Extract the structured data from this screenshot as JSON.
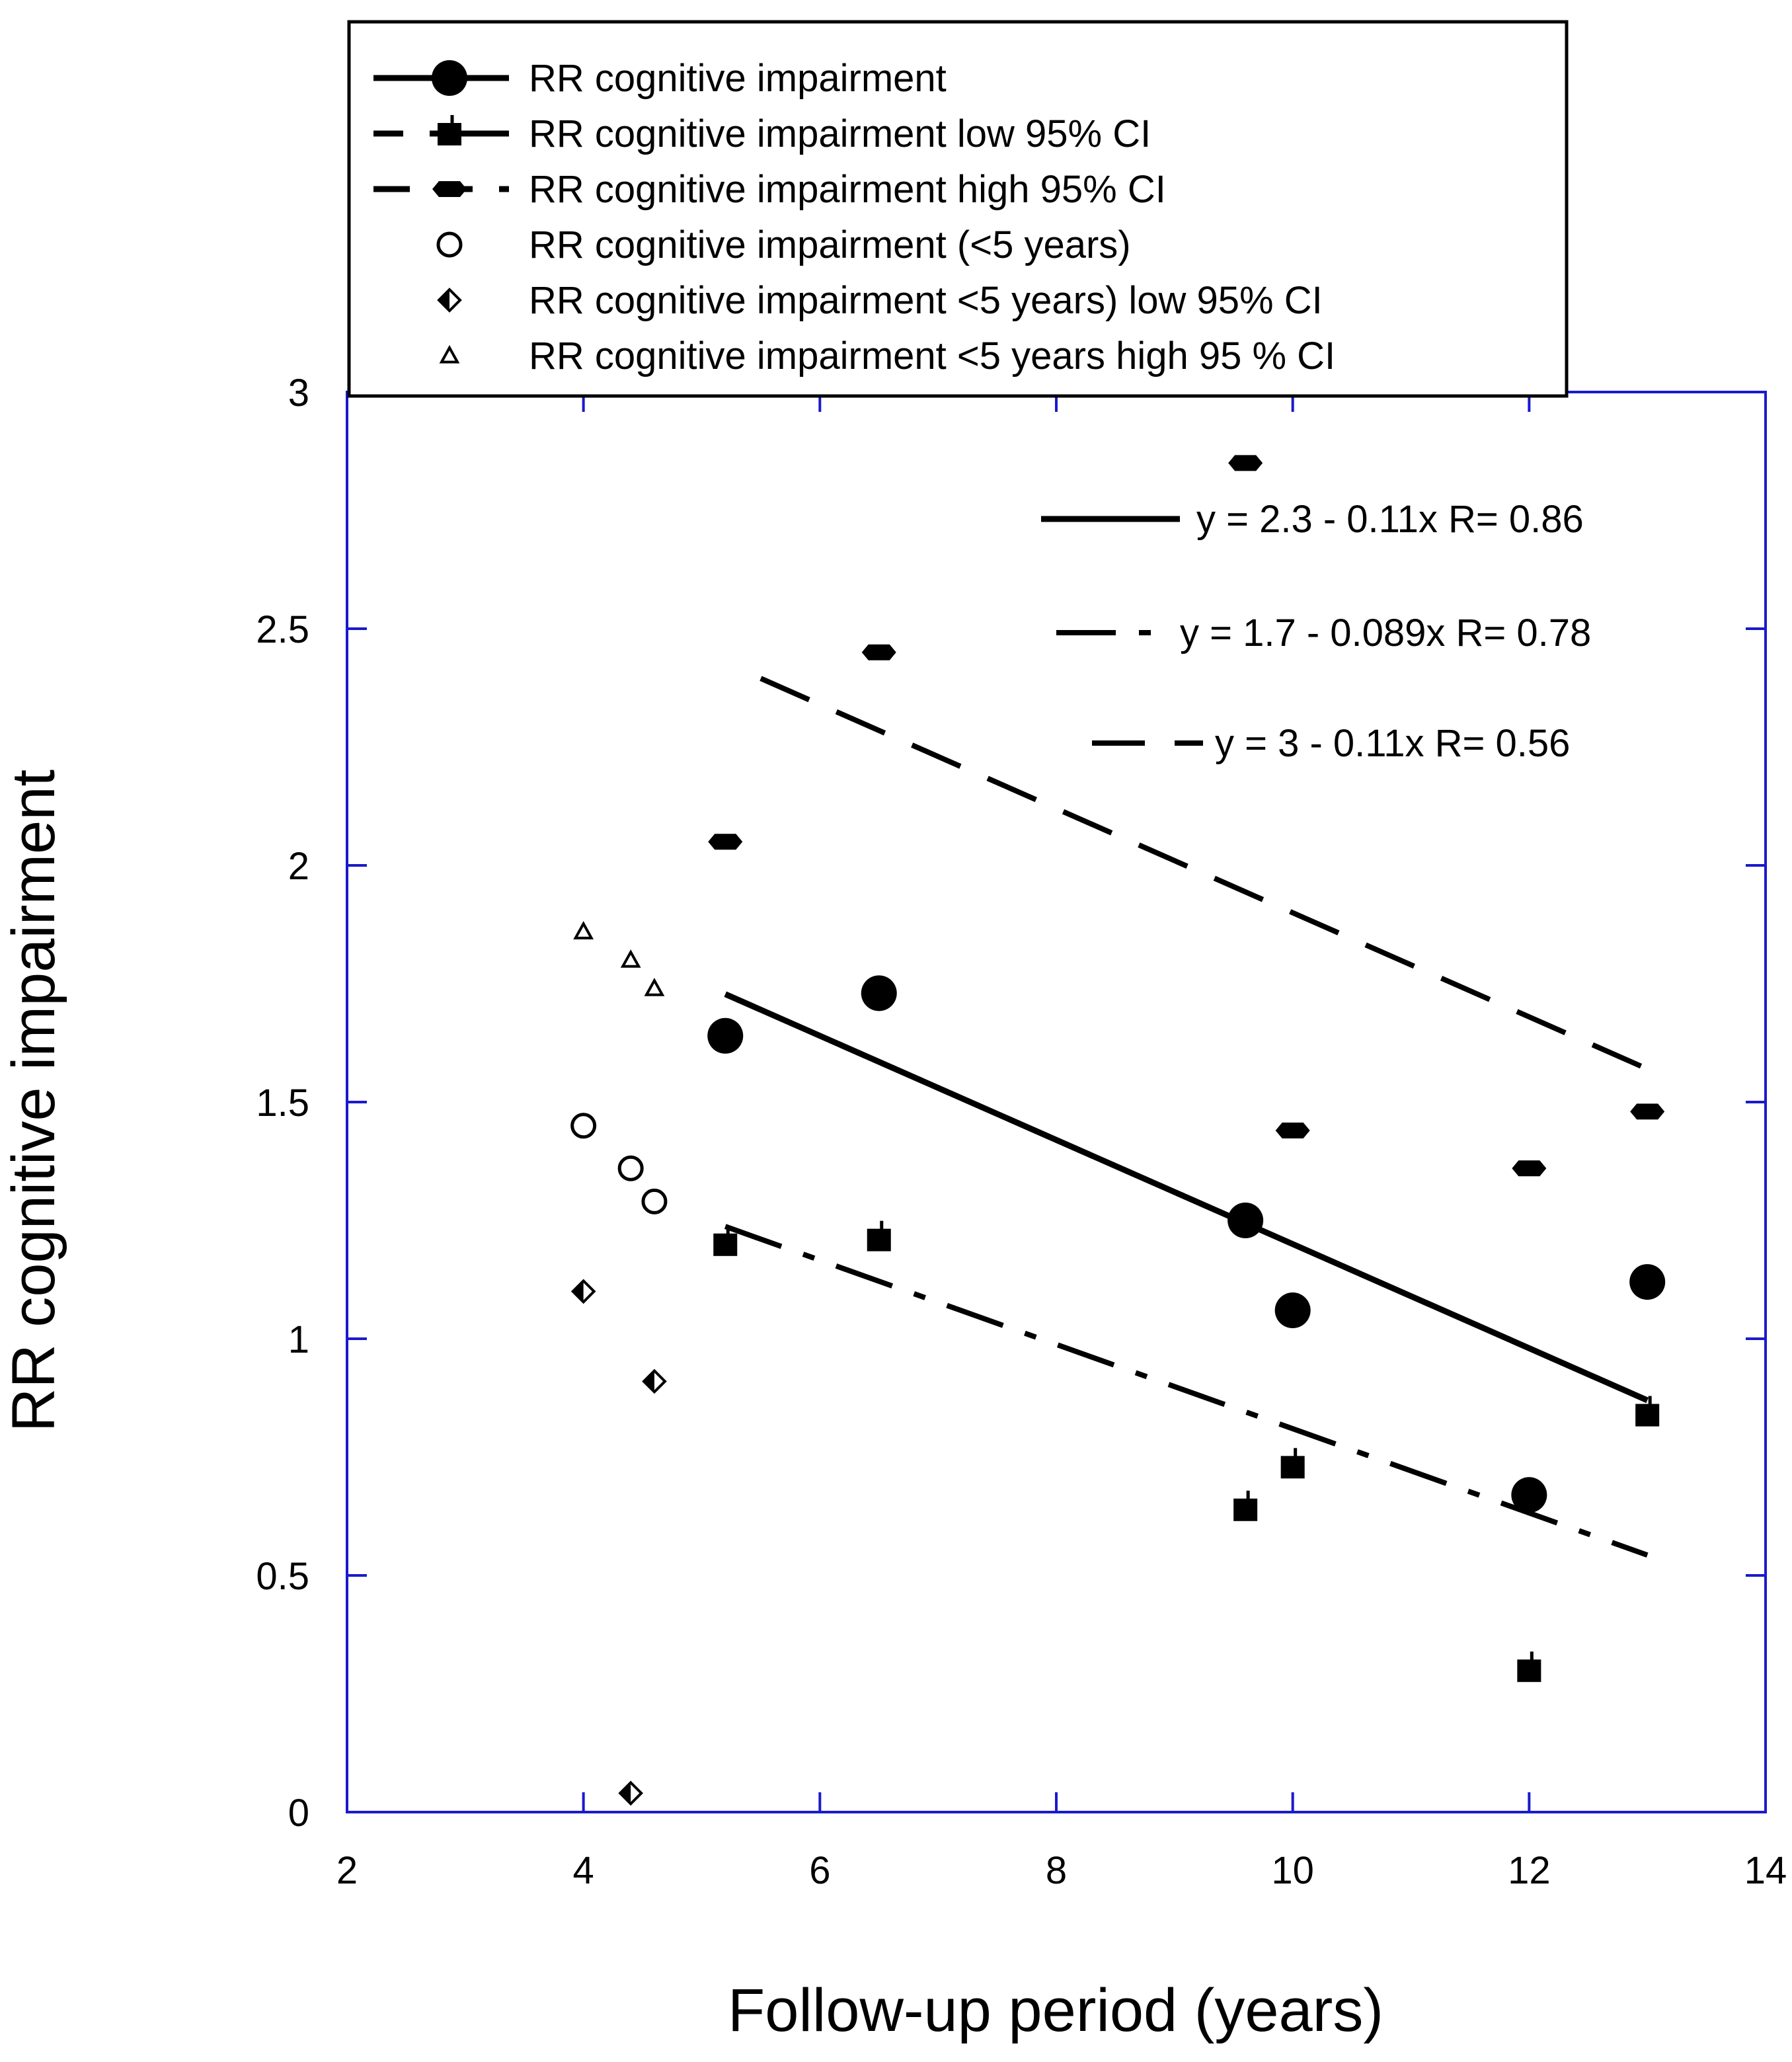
{
  "chart_data": {
    "type": "scatter",
    "xlabel": "Follow-up period (years)",
    "ylabel": "RR cognitive impairment",
    "xlim": [
      2,
      14
    ],
    "ylim": [
      0,
      3
    ],
    "x_ticks": [
      2,
      4,
      6,
      8,
      10,
      12,
      14
    ],
    "y_ticks": [
      0,
      0.5,
      1,
      1.5,
      2,
      2.5,
      3
    ],
    "y_tick_labels": [
      "0",
      "0.5",
      "1",
      "1.5",
      "2",
      "2.5",
      "3"
    ],
    "axis_color": "#1a1acc",
    "legend_position": "top-left",
    "series": [
      {
        "name": "RR cognitive impairment",
        "marker": "circle-filled",
        "line": "solid",
        "points": [
          [
            5.2,
            1.64
          ],
          [
            6.5,
            1.73
          ],
          [
            9.6,
            1.25
          ],
          [
            10.0,
            1.06
          ],
          [
            12.0,
            0.67
          ],
          [
            13.0,
            1.12
          ]
        ]
      },
      {
        "name": "RR cognitive  impairment low 95% CI",
        "marker": "square-filled",
        "line": "dash-dot",
        "points": [
          [
            5.2,
            1.2
          ],
          [
            6.5,
            1.21
          ],
          [
            9.6,
            0.64
          ],
          [
            10.0,
            0.73
          ],
          [
            12.0,
            0.3
          ],
          [
            13.0,
            0.84
          ]
        ]
      },
      {
        "name": "RR cognitive  impairment high 95% CI",
        "marker": "hexagon-filled",
        "line": "dashed",
        "points": [
          [
            5.2,
            2.05
          ],
          [
            6.5,
            2.45
          ],
          [
            9.6,
            2.85
          ],
          [
            10.0,
            1.44
          ],
          [
            12.0,
            1.36
          ],
          [
            13.0,
            1.48
          ]
        ]
      },
      {
        "name": "RR cognitive impairment (<5 years)",
        "marker": "circle-open",
        "line": "none",
        "points": [
          [
            4.0,
            1.45
          ],
          [
            4.4,
            1.36
          ],
          [
            4.6,
            1.29
          ]
        ]
      },
      {
        "name": "RR cognitive impairment <5 years) low 95% CI",
        "marker": "diamond-half",
        "line": "none",
        "points": [
          [
            4.0,
            1.1
          ],
          [
            4.6,
            0.91
          ],
          [
            4.4,
            0.04
          ]
        ]
      },
      {
        "name": "RR cognitive impairment <5 years high 95 % CI",
        "marker": "triangle-open",
        "line": "none",
        "points": [
          [
            4.0,
            1.86
          ],
          [
            4.4,
            1.8
          ],
          [
            4.6,
            1.74
          ]
        ]
      }
    ],
    "regression_lines": [
      {
        "equation": "y = 2.3 - 0.11x   R= 0.86",
        "style": "solid",
        "intercept": 2.3,
        "slope": -0.11,
        "x_range": [
          5.2,
          13.0
        ]
      },
      {
        "equation": "y = 1.7 - 0.089x   R= 0.78",
        "style": "dash-dot",
        "intercept": 1.7,
        "slope": -0.089,
        "x_range": [
          5.2,
          13.0
        ]
      },
      {
        "equation": "y = 3 - 0.11x   R= 0.56",
        "style": "dashed",
        "intercept": 3.0,
        "slope": -0.11,
        "x_range": [
          5.5,
          13.0
        ]
      }
    ]
  }
}
